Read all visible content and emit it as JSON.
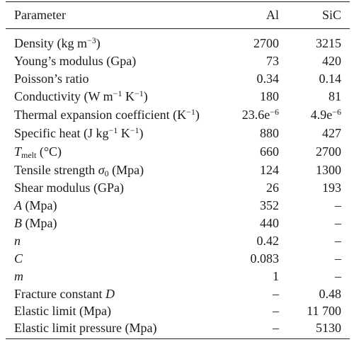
{
  "table": {
    "header": {
      "parameter": "Parameter",
      "al": "Al",
      "sic": "SiC"
    },
    "rows": [
      {
        "parameter_prefix": "Density (kg m",
        "parameter_sup": "−3",
        "parameter_suffix": ")",
        "al": "2700",
        "sic": "3215"
      },
      {
        "parameter_prefix": "Young’s modulus (Gpa)",
        "al": "73",
        "sic": "420"
      },
      {
        "parameter_prefix": "Poisson’s ratio",
        "al": "0.34",
        "sic": "0.14"
      },
      {
        "parameter_prefix": "Conductivity (W m",
        "parameter_sup": "−1",
        "parameter_mid": " K",
        "parameter_sup2": "−1",
        "parameter_suffix": ")",
        "al": "180",
        "sic": "81"
      },
      {
        "parameter_prefix": "Thermal expansion coefficient (K",
        "parameter_sup": "−1",
        "parameter_suffix": ")",
        "al_base": "23.6e",
        "al_sup": "−6",
        "sic_base": "4.9e",
        "sic_sup": "−6"
      },
      {
        "parameter_prefix": "Specific heat (J kg",
        "parameter_sup": "−1",
        "parameter_mid": " K",
        "parameter_sup2": "−1",
        "parameter_suffix": ")",
        "al": "880",
        "sic": "427"
      },
      {
        "parameter_italic": "T",
        "parameter_sub": "melt",
        "parameter_suffix": " (°C)",
        "al": "660",
        "sic": "2700"
      },
      {
        "parameter_prefix": "Tensile strength ",
        "parameter_italic2": "σ",
        "parameter_sub2": "0",
        "parameter_suffix": " (Mpa)",
        "al": "124",
        "sic": "1300"
      },
      {
        "parameter_prefix": "Shear modulus (GPa)",
        "al": "26",
        "sic": "193"
      },
      {
        "parameter_italic": "A",
        "parameter_suffix": " (Mpa)",
        "al": "352",
        "sic": "–"
      },
      {
        "parameter_italic": "B",
        "parameter_suffix": " (Mpa)",
        "al": "440",
        "sic": "–"
      },
      {
        "parameter_italic": "n",
        "al": "0.42",
        "sic": "–"
      },
      {
        "parameter_italic": "C",
        "al": "0.083",
        "sic": "–"
      },
      {
        "parameter_italic": "m",
        "al": "1",
        "sic": "–"
      },
      {
        "parameter_prefix": "Fracture constant ",
        "parameter_italic2": "D",
        "al": "–",
        "sic": "0.48"
      },
      {
        "parameter_prefix": "Elastic limit (Mpa)",
        "al": "–",
        "sic": "11 700"
      },
      {
        "parameter_prefix": "Elastic limit pressure (Mpa)",
        "al": "–",
        "sic": "5130"
      }
    ]
  }
}
